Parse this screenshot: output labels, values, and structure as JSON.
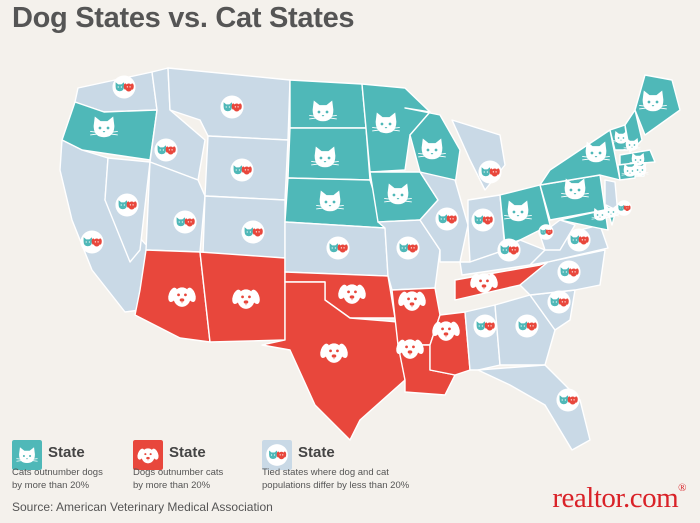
{
  "title": "Dog States vs. Cat States",
  "colors": {
    "cat": "#4fb8b8",
    "dog": "#e8473c",
    "tied": "#c9d9e6",
    "border": "#ffffff"
  },
  "legend": [
    {
      "key": "cat",
      "icon": "cat-face-icon",
      "label": "State",
      "description_line1": "Cats outnumber dogs",
      "description_line2": "by more than 20%"
    },
    {
      "key": "dog",
      "icon": "dog-face-icon",
      "label": "State",
      "description_line1": "Dogs outnumber cats",
      "description_line2": "by more than 20%"
    },
    {
      "key": "tied",
      "icon": "cat-and-dog-icon",
      "label": "State",
      "description_line1": "Tied states where dog and cat",
      "description_line2": "populations differ by less than 20%"
    }
  ],
  "states": [
    {
      "code": "WA",
      "category": "tied"
    },
    {
      "code": "OR",
      "category": "cat"
    },
    {
      "code": "CA",
      "category": "tied"
    },
    {
      "code": "NV",
      "category": "tied"
    },
    {
      "code": "ID",
      "category": "tied"
    },
    {
      "code": "MT",
      "category": "tied"
    },
    {
      "code": "WY",
      "category": "tied"
    },
    {
      "code": "UT",
      "category": "tied"
    },
    {
      "code": "CO",
      "category": "tied"
    },
    {
      "code": "AZ",
      "category": "dog"
    },
    {
      "code": "NM",
      "category": "dog"
    },
    {
      "code": "ND",
      "category": "cat"
    },
    {
      "code": "SD",
      "category": "cat"
    },
    {
      "code": "NE",
      "category": "cat"
    },
    {
      "code": "KS",
      "category": "tied"
    },
    {
      "code": "OK",
      "category": "dog"
    },
    {
      "code": "TX",
      "category": "dog"
    },
    {
      "code": "MN",
      "category": "cat"
    },
    {
      "code": "IA",
      "category": "cat"
    },
    {
      "code": "MO",
      "category": "tied"
    },
    {
      "code": "AR",
      "category": "dog"
    },
    {
      "code": "LA",
      "category": "dog"
    },
    {
      "code": "WI",
      "category": "cat"
    },
    {
      "code": "IL",
      "category": "tied"
    },
    {
      "code": "MS",
      "category": "dog"
    },
    {
      "code": "MI",
      "category": "tied"
    },
    {
      "code": "IN",
      "category": "tied"
    },
    {
      "code": "OH",
      "category": "cat"
    },
    {
      "code": "KY",
      "category": "tied"
    },
    {
      "code": "TN",
      "category": "dog"
    },
    {
      "code": "AL",
      "category": "tied"
    },
    {
      "code": "GA",
      "category": "tied"
    },
    {
      "code": "FL",
      "category": "tied"
    },
    {
      "code": "SC",
      "category": "tied"
    },
    {
      "code": "NC",
      "category": "tied"
    },
    {
      "code": "VA",
      "category": "tied"
    },
    {
      "code": "WV",
      "category": "tied"
    },
    {
      "code": "PA",
      "category": "cat"
    },
    {
      "code": "NY",
      "category": "cat"
    },
    {
      "code": "NJ",
      "category": "tied"
    },
    {
      "code": "MD",
      "category": "cat"
    },
    {
      "code": "DE",
      "category": "cat"
    },
    {
      "code": "VT",
      "category": "cat"
    },
    {
      "code": "NH",
      "category": "cat"
    },
    {
      "code": "ME",
      "category": "cat"
    },
    {
      "code": "MA",
      "category": "cat"
    },
    {
      "code": "CT",
      "category": "cat"
    },
    {
      "code": "RI",
      "category": "cat"
    }
  ],
  "source": "Source: American Veterinary Medical Association",
  "brand": "realtor.com",
  "brand_mark": "®"
}
